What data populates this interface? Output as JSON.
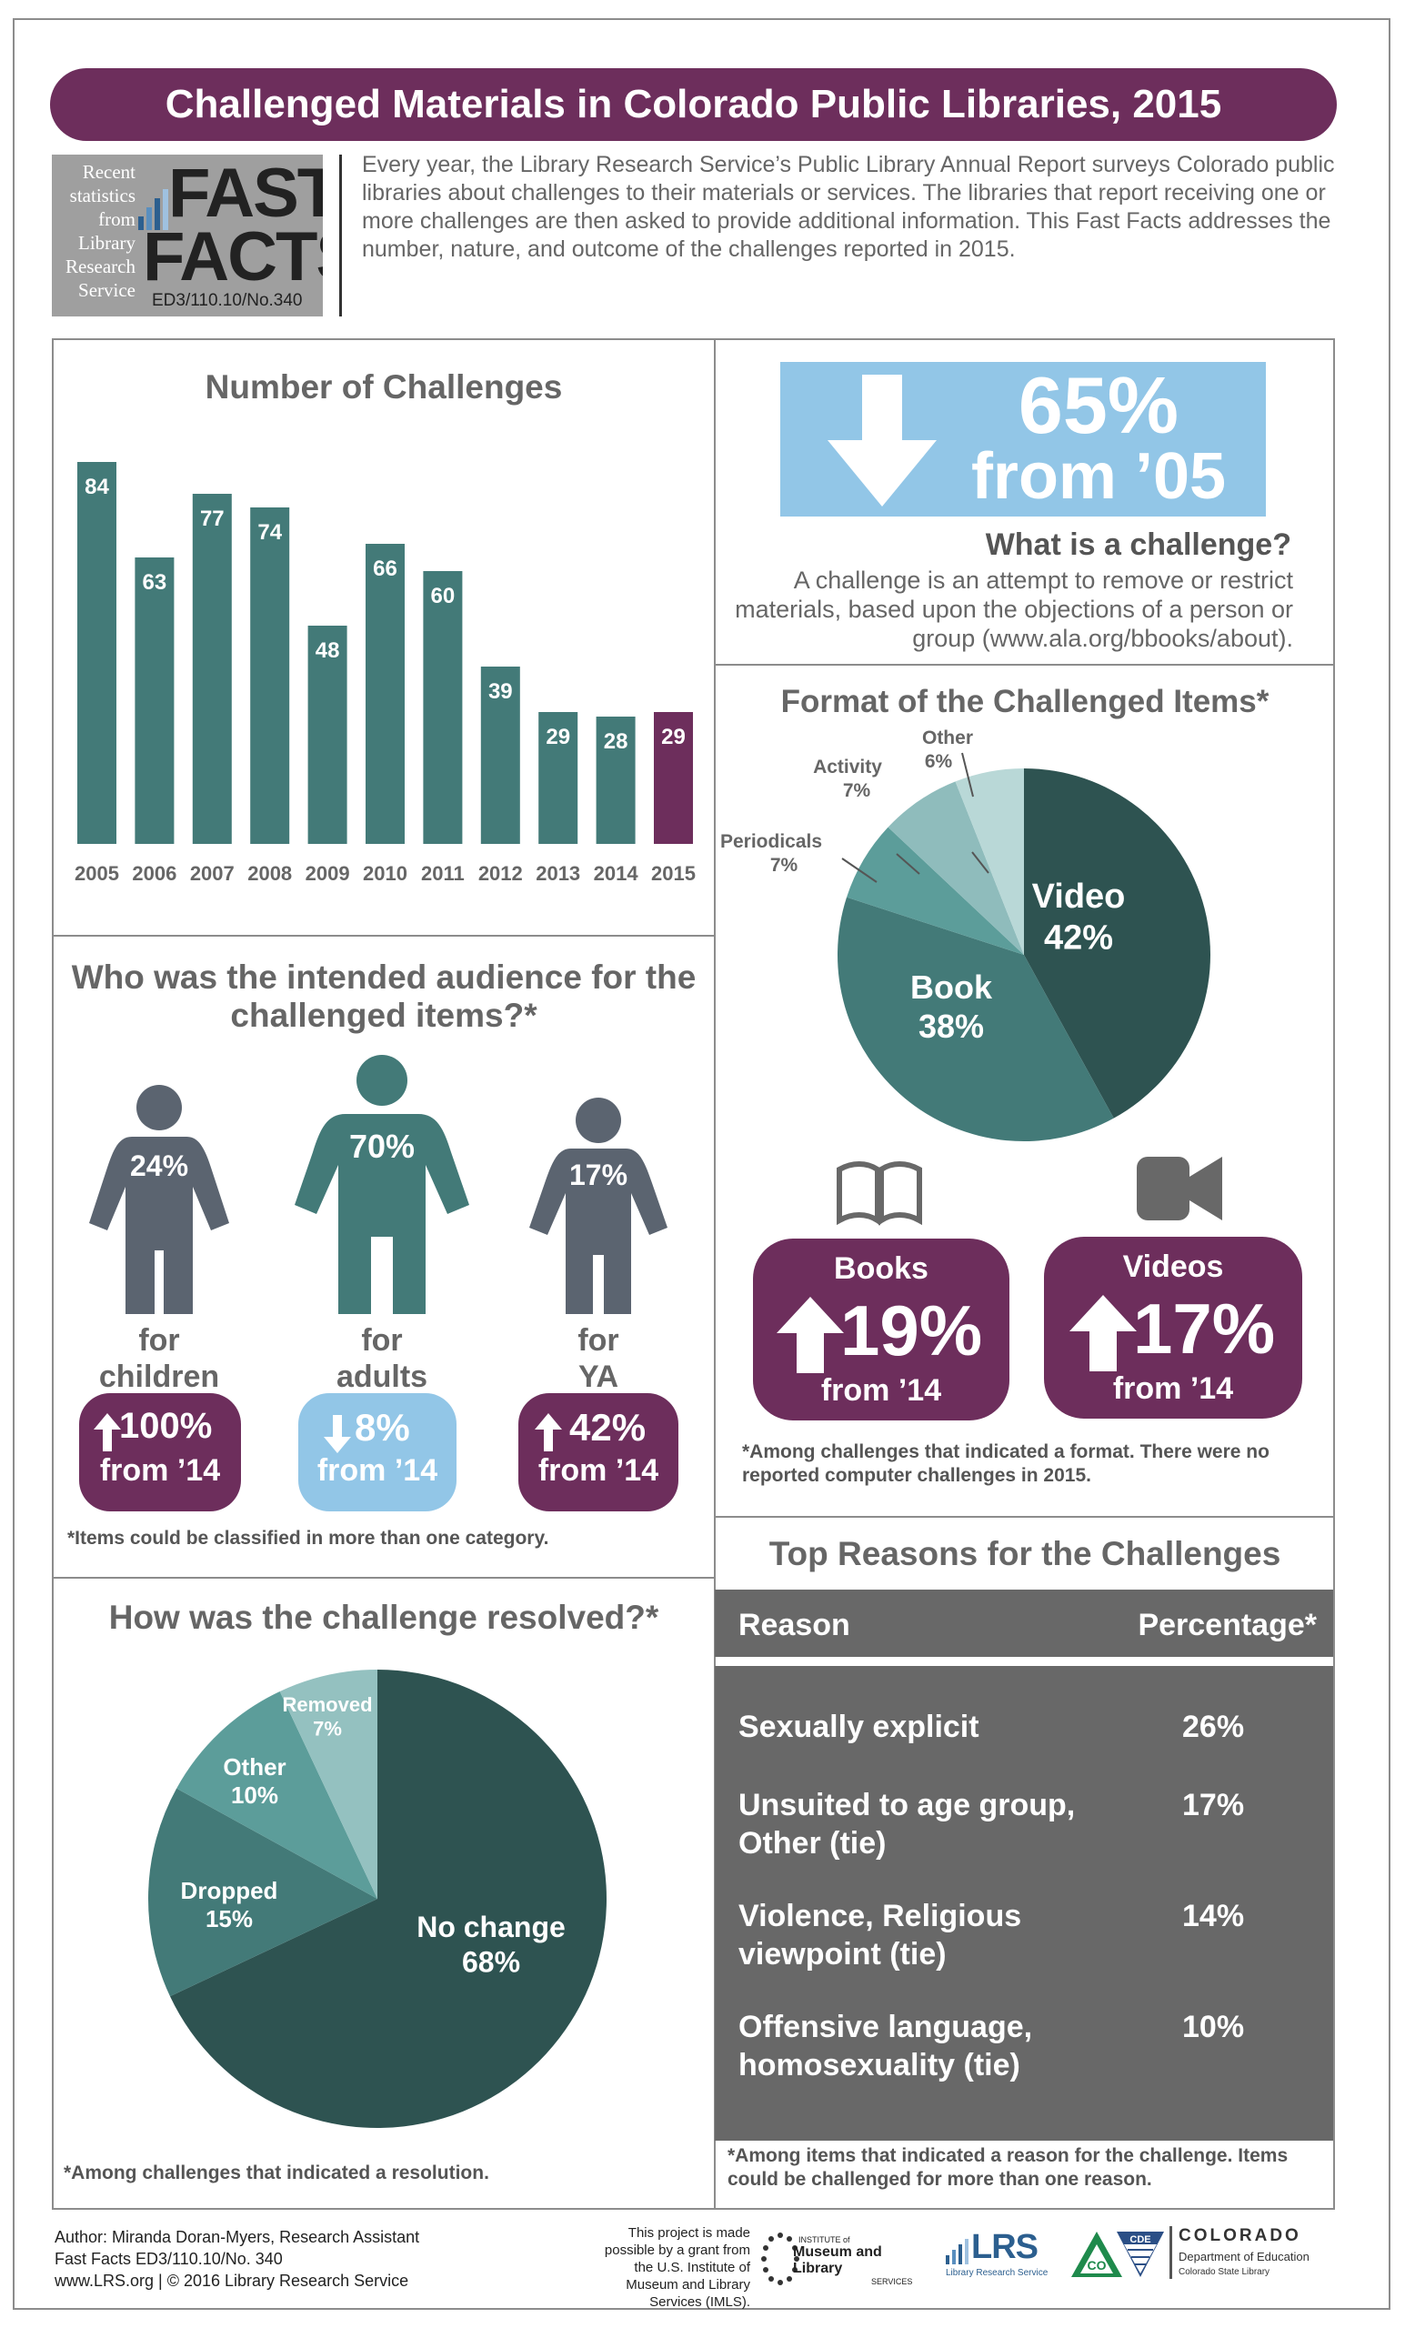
{
  "title": "Challenged Materials in Colorado Public Libraries, 2015",
  "logo": {
    "side_lines": [
      "Recent",
      "statistics",
      "from",
      "Library",
      "Research",
      "Service"
    ],
    "word1": "FAST",
    "word2": "FACTS",
    "code": "ED3/110.10/No.340"
  },
  "intro": "Every year, the Library Research Service’s Public Library Annual Report surveys Colorado public libraries about challenges to their materials or services. The libraries that report receiving one or more challenges are then asked to provide additional information. This Fast Facts addresses the number, nature, and outcome of the challenges reported in 2015.",
  "drop": {
    "pct": "65%",
    "from": "from ’05"
  },
  "definition": {
    "question": "What is a challenge?",
    "answer": "A challenge is an attempt to remove or restrict materials, based upon the objections of a person or group (www.ala.org/bbooks/about)."
  },
  "audience": {
    "title": "Who was the intended audience for the challenged items?*",
    "groups": [
      {
        "pct": "24%",
        "for": "for",
        "who": "children",
        "arrow": "up",
        "change": "100%",
        "from": "from ’14"
      },
      {
        "pct": "70%",
        "for": "for",
        "who": "adults",
        "arrow": "down",
        "change": "8%",
        "from": "from ’14"
      },
      {
        "pct": "17%",
        "for": "for",
        "who": "YA",
        "arrow": "up",
        "change": "42%",
        "from": "from ’14"
      }
    ],
    "note": "*Items could be classified in more than one category."
  },
  "format_changes": [
    {
      "label": "Books",
      "change": "19%",
      "from": "from ’14",
      "icon": "book-icon"
    },
    {
      "label": "Videos",
      "change": "17%",
      "from": "from ’14",
      "icon": "video-camera-icon"
    }
  ],
  "format_note": "*Among challenges that indicated a format. There were no reported computer challenges in 2015.",
  "resolution_note": "*Among challenges that indicated a resolution.",
  "reasons": {
    "title": "Top Reasons for the Challenges",
    "col_reason": "Reason",
    "col_pct": "Percentage*",
    "rows": [
      {
        "reason": [
          "Sexually explicit"
        ],
        "pct": "26%"
      },
      {
        "reason": [
          "Unsuited to age group,",
          "Other (tie)"
        ],
        "pct": "17%"
      },
      {
        "reason": [
          "Violence, Religious",
          "viewpoint (tie)"
        ],
        "pct": "14%"
      },
      {
        "reason": [
          "Offensive language,",
          "homosexuality (tie)"
        ],
        "pct": "10%"
      }
    ],
    "note": "*Among items that indicated a reason for the challenge. Items could be challenged for more than one reason."
  },
  "footer": {
    "author": "Author: Miranda Doran-Myers, Research Assistant",
    "code": "Fast Facts ED3/110.10/No. 340",
    "site": "www.LRS.org | © 2016 Library Research Service",
    "grant": "This project is made possible by a grant from the U.S. Institute of Museum and Library Services (IMLS).",
    "imls": [
      "INSTITUTE of",
      "Museum and Library",
      "SERVICES"
    ],
    "lrs": "LRS",
    "lrs_sub": "Library Research Service",
    "cde_badge": "CDE",
    "co_badge": "CO",
    "colorado": "COLORADO",
    "dept": "Department of Education",
    "csl": "Colorado State Library"
  },
  "colors": {
    "purple": "#6d2e5c",
    "teal": "#437a78",
    "dark_teal": "#2e5351",
    "slate": "#5b6470",
    "light_blue": "#92c6e7",
    "gray": "#686868"
  },
  "chart_data": [
    {
      "type": "bar",
      "title": "Number of Challenges",
      "categories": [
        "2005",
        "2006",
        "2007",
        "2008",
        "2009",
        "2010",
        "2011",
        "2012",
        "2013",
        "2014",
        "2015"
      ],
      "values": [
        84,
        63,
        77,
        74,
        48,
        66,
        60,
        39,
        29,
        28,
        29
      ],
      "highlight": "2015"
    },
    {
      "type": "pie",
      "title": "Format of the Challenged Items*",
      "slices": [
        {
          "label": "Video",
          "value": 42,
          "text": "42%"
        },
        {
          "label": "Book",
          "value": 38,
          "text": "38%"
        },
        {
          "label": "Periodicals",
          "value": 7,
          "text": "7%"
        },
        {
          "label": "Activity",
          "value": 7,
          "text": "7%"
        },
        {
          "label": "Other",
          "value": 6,
          "text": "6%"
        }
      ]
    },
    {
      "type": "pie",
      "title": "How was the challenge resolved?*",
      "slices": [
        {
          "label": "No change",
          "value": 68,
          "text": "68%"
        },
        {
          "label": "Dropped",
          "value": 15,
          "text": "15%"
        },
        {
          "label": "Other",
          "value": 10,
          "text": "10%"
        },
        {
          "label": "Removed",
          "value": 7,
          "text": "7%"
        }
      ]
    }
  ]
}
